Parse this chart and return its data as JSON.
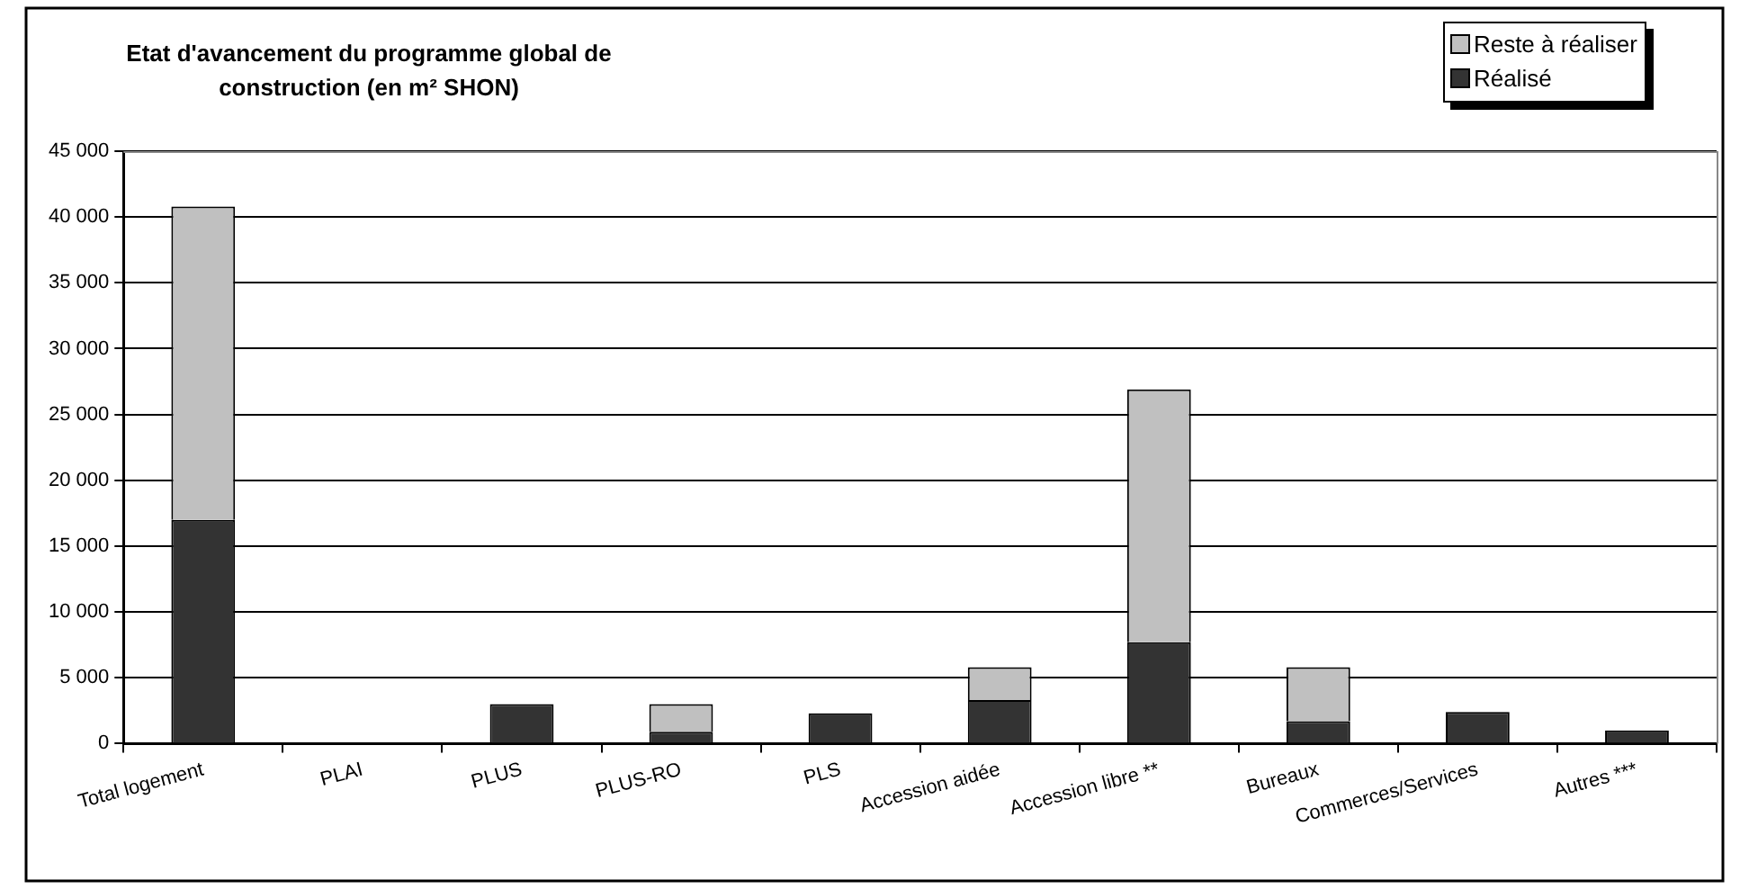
{
  "chart_data": {
    "type": "bar",
    "title": "Etat d'avancement du programme global de construction (en m² SHON)",
    "categories": [
      "Total logement",
      "PLAI",
      "PLUS",
      "PLUS-RO",
      "PLS",
      "Accession aidée",
      "Accession libre **",
      "Bureaux",
      "Commerces/Services",
      "Autres ***"
    ],
    "series": [
      {
        "name": "Réalisé",
        "color": "#333333",
        "values": [
          17000,
          0,
          3000,
          900,
          2300,
          3300,
          7700,
          1700,
          2400,
          1000
        ]
      },
      {
        "name": "Reste à réaliser",
        "color": "#c0c0c0",
        "values": [
          23800,
          0,
          0,
          2100,
          0,
          2500,
          19200,
          4100,
          0,
          0
        ]
      }
    ],
    "stacked": true,
    "ylim": [
      0,
      45000
    ],
    "yticks": [
      {
        "value": 0,
        "label": "0"
      },
      {
        "value": 5000,
        "label": "5 000"
      },
      {
        "value": 10000,
        "label": "10 000"
      },
      {
        "value": 15000,
        "label": "15 000"
      },
      {
        "value": 20000,
        "label": "20 000"
      },
      {
        "value": 25000,
        "label": "25 000"
      },
      {
        "value": 30000,
        "label": "30 000"
      },
      {
        "value": 35000,
        "label": "35 000"
      },
      {
        "value": 40000,
        "label": "40 000"
      },
      {
        "value": 45000,
        "label": "45 000"
      }
    ],
    "grid": "y",
    "legend": "top right"
  }
}
